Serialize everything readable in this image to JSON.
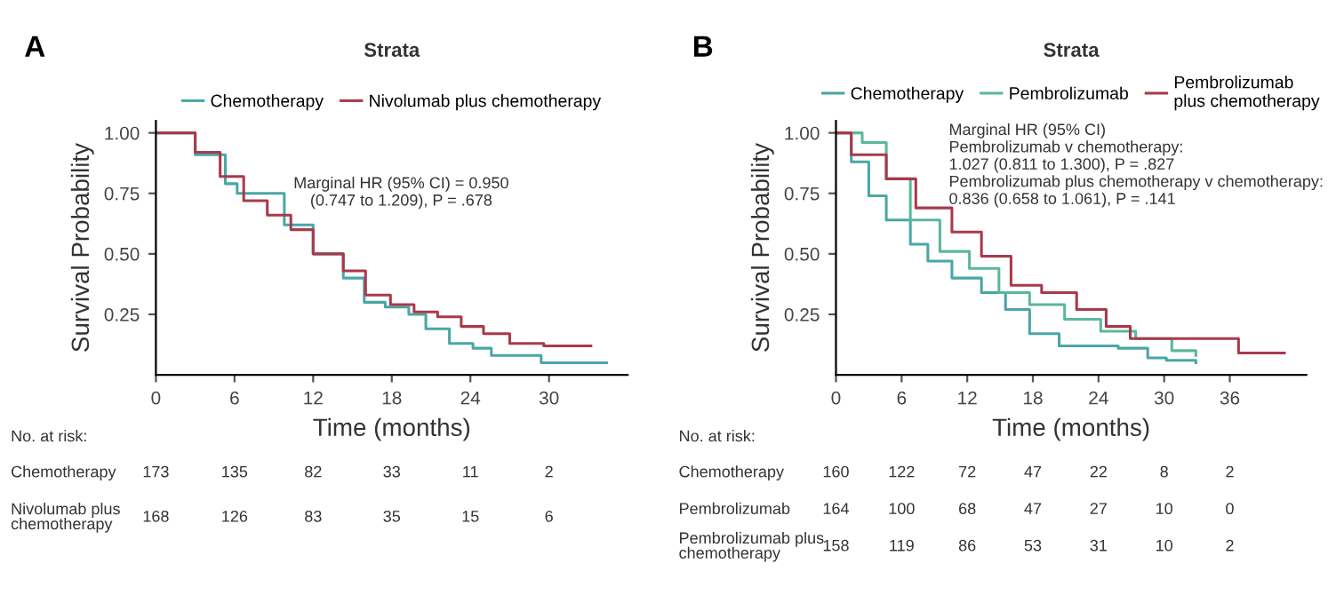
{
  "chart_data": [
    {
      "type": "step",
      "title": "Strata",
      "xlabel": "Time (months)",
      "ylabel": "Survival Probability",
      "xlim": [
        0,
        36
      ],
      "ylim": [
        0,
        1.05
      ],
      "xticks": [
        0,
        6,
        12,
        18,
        24,
        30
      ],
      "yticks": [
        {
          "value": 0.25,
          "label": "0.25"
        },
        {
          "value": 0.5,
          "label": "0.50"
        },
        {
          "value": 0.75,
          "label": "0.75"
        },
        {
          "value": 1.0,
          "label": "1.00"
        }
      ],
      "legend": "top",
      "grid": false,
      "series": [
        {
          "name": "Chemotherapy",
          "color": "#4aa6a6",
          "x": [
            0,
            3,
            5.3,
            6.2,
            8,
            9.8,
            12,
            14.3,
            15.9,
            17.5,
            19.3,
            20.6,
            22.4,
            24.2,
            25.6,
            29.4,
            34.4
          ],
          "values": [
            1.0,
            0.91,
            0.79,
            0.75,
            0.75,
            0.62,
            0.5,
            0.4,
            0.3,
            0.28,
            0.25,
            0.19,
            0.13,
            0.11,
            0.08,
            0.05,
            0.05
          ]
        },
        {
          "name": "Nivolumab plus chemotherapy",
          "color": "#a83a4a",
          "x": [
            0,
            3,
            4.9,
            6.7,
            8.5,
            10.3,
            12,
            14.3,
            16,
            17.9,
            19.7,
            21.5,
            23.3,
            25,
            27,
            29.6,
            33.2
          ],
          "values": [
            1.0,
            0.92,
            0.82,
            0.72,
            0.66,
            0.6,
            0.5,
            0.43,
            0.33,
            0.29,
            0.26,
            0.24,
            0.2,
            0.17,
            0.13,
            0.12,
            0.12
          ]
        }
      ],
      "annotations": [
        "A",
        "Marginal HR (95% CI) = 0.950\n(0.747 to 1.209), P = .678",
        "No. at risk:",
        "Chemotherapy",
        "173",
        "135",
        "82",
        "33",
        "11",
        "2",
        "Nivolumab plus\nchemotherapy",
        "168",
        "126",
        "83",
        "35",
        "15",
        "6"
      ]
    },
    {
      "type": "step",
      "title": "Strata",
      "xlabel": "Time (months)",
      "ylabel": "Survival Probability",
      "xlim": [
        0,
        43
      ],
      "ylim": [
        0,
        1.05
      ],
      "xticks": [
        0,
        6,
        12,
        18,
        24,
        30,
        36
      ],
      "yticks": [
        {
          "value": 0.25,
          "label": "0.25"
        },
        {
          "value": 0.5,
          "label": "0.50"
        },
        {
          "value": 0.75,
          "label": "0.75"
        },
        {
          "value": 1.0,
          "label": "1.00"
        }
      ],
      "legend": "top",
      "grid": false,
      "series": [
        {
          "name": "Chemotherapy",
          "color": "#4aa6a6",
          "x": [
            0,
            1.4,
            3,
            4.6,
            6.8,
            8.4,
            10.6,
            13.3,
            15.5,
            17.7,
            20.4,
            23.1,
            25.8,
            28.5,
            30.2,
            32.9
          ],
          "values": [
            1.0,
            0.88,
            0.74,
            0.64,
            0.54,
            0.47,
            0.4,
            0.34,
            0.27,
            0.17,
            0.12,
            0.12,
            0.11,
            0.07,
            0.06,
            0.05
          ]
        },
        {
          "name": "Pembrolizumab",
          "color": "#5ab89a",
          "x": [
            0,
            2.4,
            4.6,
            6.8,
            9.5,
            12.2,
            14.9,
            17.7,
            20.9,
            24.2,
            27.4,
            30.7,
            32.9
          ],
          "values": [
            1.0,
            0.96,
            0.81,
            0.64,
            0.51,
            0.44,
            0.34,
            0.29,
            0.23,
            0.18,
            0.15,
            0.1,
            0.08
          ]
        },
        {
          "name": "Pembrolizumab\nplus chemotherapy",
          "color": "#a83a4a",
          "x": [
            0,
            1.4,
            4.6,
            7.3,
            10.6,
            13.3,
            16,
            18.8,
            22,
            24.7,
            26.9,
            36.8,
            41
          ],
          "values": [
            1.0,
            0.91,
            0.81,
            0.69,
            0.59,
            0.49,
            0.37,
            0.34,
            0.27,
            0.2,
            0.15,
            0.09,
            0.09
          ]
        }
      ],
      "annotations": [
        "B",
        "Marginal HR (95% CI)\nPembrolizumab v chemotherapy:\n1.027 (0.811 to 1.300), P = .827\nPembrolizumab plus chemotherapy v chemotherapy:\n0.836 (0.658 to 1.061), P = .141",
        "No. at risk:",
        "Chemotherapy",
        "160",
        "122",
        "72",
        "47",
        "22",
        "8",
        "2",
        "Pembrolizumab",
        "164",
        "100",
        "68",
        "47",
        "27",
        "10",
        "0",
        "Pembrolizumab plus\nchemotherapy",
        "158",
        "119",
        "86",
        "53",
        "31",
        "10",
        "2"
      ]
    }
  ]
}
